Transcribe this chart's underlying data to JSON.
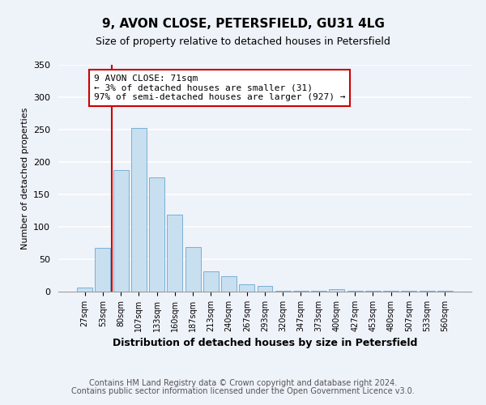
{
  "title": "9, AVON CLOSE, PETERSFIELD, GU31 4LG",
  "subtitle": "Size of property relative to detached houses in Petersfield",
  "xlabel": "Distribution of detached houses by size in Petersfield",
  "ylabel": "Number of detached properties",
  "bar_labels": [
    "27sqm",
    "53sqm",
    "80sqm",
    "107sqm",
    "133sqm",
    "160sqm",
    "187sqm",
    "213sqm",
    "240sqm",
    "267sqm",
    "293sqm",
    "320sqm",
    "347sqm",
    "373sqm",
    "400sqm",
    "427sqm",
    "453sqm",
    "480sqm",
    "507sqm",
    "533sqm",
    "560sqm"
  ],
  "bar_values": [
    6,
    67,
    188,
    252,
    176,
    119,
    69,
    31,
    24,
    11,
    9,
    1,
    1,
    1,
    4,
    1,
    1,
    1,
    1,
    1,
    1
  ],
  "bar_color": "#c8dff0",
  "bar_edge_color": "#7ab0d4",
  "vline_color": "#cc0000",
  "annotation_line1": "9 AVON CLOSE: 71sqm",
  "annotation_line2": "← 3% of detached houses are smaller (31)",
  "annotation_line3": "97% of semi-detached houses are larger (927) →",
  "annotation_box_edgecolor": "#cc0000",
  "annotation_box_facecolor": "#ffffff",
  "ylim": [
    0,
    350
  ],
  "yticks": [
    0,
    50,
    100,
    150,
    200,
    250,
    300,
    350
  ],
  "footer_line1": "Contains HM Land Registry data © Crown copyright and database right 2024.",
  "footer_line2": "Contains public sector information licensed under the Open Government Licence v3.0.",
  "background_color": "#eef2f9",
  "grid_color": "#ffffff"
}
